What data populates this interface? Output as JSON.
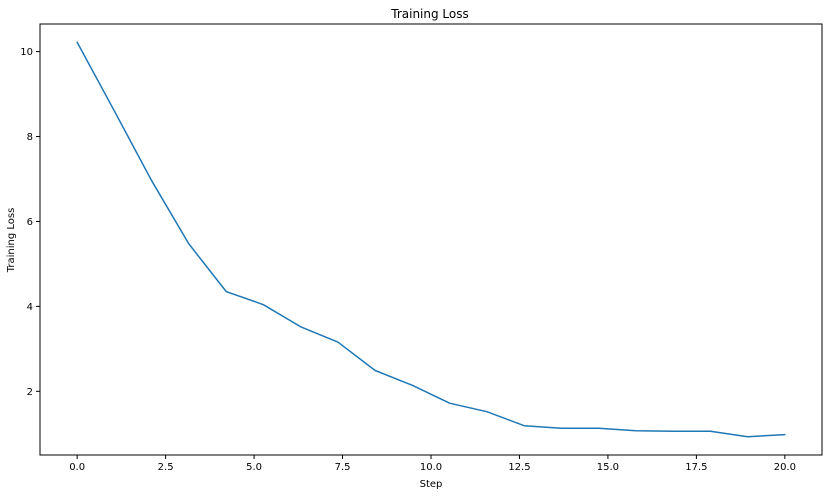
{
  "chart_data": {
    "type": "line",
    "title": "Training Loss",
    "xlabel": "Step",
    "ylabel": "Training Loss",
    "xlim": [
      -1.05,
      21.05
    ],
    "ylim": [
      0.5,
      10.65
    ],
    "x_ticks": [
      0.0,
      2.5,
      5.0,
      7.5,
      10.0,
      12.5,
      15.0,
      17.5,
      20.0
    ],
    "x_tick_labels": [
      "0.0",
      "2.5",
      "5.0",
      "7.5",
      "10.0",
      "12.5",
      "15.0",
      "17.5",
      "20.0"
    ],
    "y_ticks": [
      2,
      4,
      6,
      8,
      10
    ],
    "y_tick_labels": [
      "2",
      "4",
      "6",
      "8",
      "10"
    ],
    "grid": false,
    "line_color": "#1f77b4",
    "series": [
      {
        "x": [
          0.0,
          1.053,
          2.105,
          3.158,
          4.211,
          5.263,
          6.316,
          7.368,
          8.421,
          9.474,
          10.526,
          11.579,
          12.632,
          13.684,
          14.737,
          15.789,
          16.842,
          17.895,
          18.947,
          20.0
        ],
        "values": [
          10.22,
          8.6,
          6.96,
          5.47,
          4.35,
          4.04,
          3.52,
          3.16,
          2.49,
          2.14,
          1.72,
          1.52,
          1.19,
          1.13,
          1.13,
          1.07,
          1.06,
          1.06,
          0.93,
          0.98
        ]
      }
    ]
  }
}
